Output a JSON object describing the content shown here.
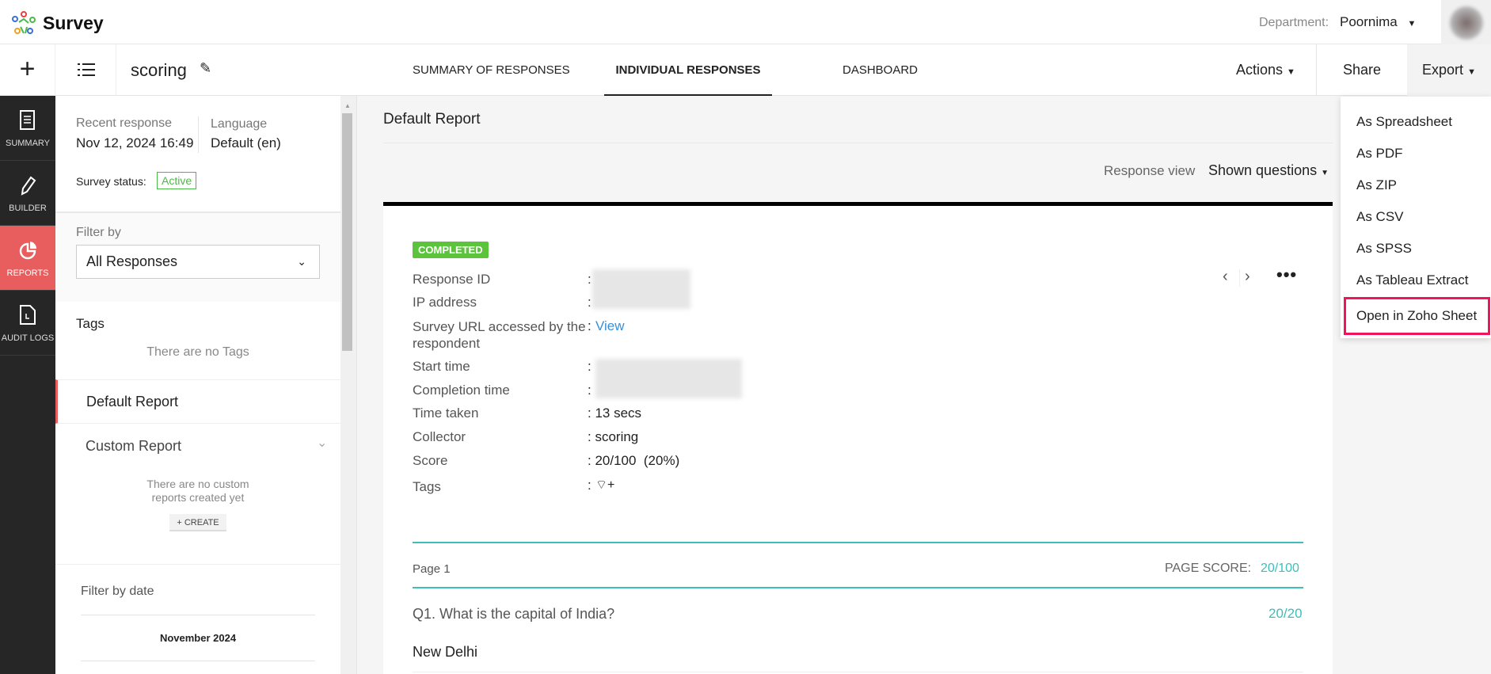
{
  "header": {
    "app_name": "Survey",
    "department_label": "Department:",
    "department_value": "Poornima"
  },
  "toolbar": {
    "survey_title": "scoring",
    "tabs": [
      {
        "label": "SUMMARY OF RESPONSES"
      },
      {
        "label": "INDIVIDUAL RESPONSES",
        "active": true
      },
      {
        "label": "DASHBOARD"
      }
    ],
    "actions": "Actions",
    "share": "Share",
    "export": "Export"
  },
  "leftnav": [
    {
      "label": "SUMMARY"
    },
    {
      "label": "BUILDER"
    },
    {
      "label": "REPORTS",
      "active": true
    },
    {
      "label": "AUDIT LOGS"
    }
  ],
  "side": {
    "recent_label": "Recent response",
    "recent_value": "Nov 12, 2024 16:49",
    "language_label": "Language",
    "language_value": "Default (en)",
    "status_label": "Survey status:",
    "status_value": "Active",
    "filter_label": "Filter by",
    "filter_value": "All Responses",
    "tags_title": "Tags",
    "no_tags": "There are no Tags",
    "default_report": "Default Report",
    "custom_report": "Custom Report",
    "no_custom_1": "There are no custom",
    "no_custom_2": "reports created yet",
    "create": "+ CREATE",
    "filter_date": "Filter by date",
    "month": "November 2024"
  },
  "main": {
    "report_title": "Default Report",
    "response_view_label": "Response view",
    "response_view_value": "Shown questions",
    "status_badge": "COMPLETED",
    "fields": [
      {
        "label": "Response ID",
        "value": ""
      },
      {
        "label": "IP address",
        "value": ""
      },
      {
        "label": "Survey URL accessed by the respondent",
        "value": "View"
      },
      {
        "label": "Start time",
        "value": ""
      },
      {
        "label": "Completion time",
        "value": ""
      },
      {
        "label": "Time taken",
        "value": "13 secs"
      },
      {
        "label": "Collector",
        "value": "scoring"
      },
      {
        "label": "Score",
        "value": "20/100  (20%)"
      },
      {
        "label": "Tags",
        "value": ""
      }
    ],
    "page_label": "Page 1",
    "page_score_label": "PAGE SCORE:",
    "page_score": "20/100",
    "question": "Q1. What is the capital of India?",
    "question_score": "20/20",
    "answer": "New Delhi"
  },
  "export_menu": [
    {
      "label": "As Spreadsheet"
    },
    {
      "label": "As PDF"
    },
    {
      "label": "As ZIP"
    },
    {
      "label": "As CSV"
    },
    {
      "label": "As SPSS"
    },
    {
      "label": "As Tableau Extract"
    },
    {
      "label": "Open in Zoho Sheet",
      "highlighted": true
    }
  ],
  "colors": {
    "reports_active": "#e85d5d",
    "completed": "#5cc43c",
    "teal": "#3bbfb8",
    "link": "#3a8fd6",
    "highlight": "#f0145a"
  }
}
